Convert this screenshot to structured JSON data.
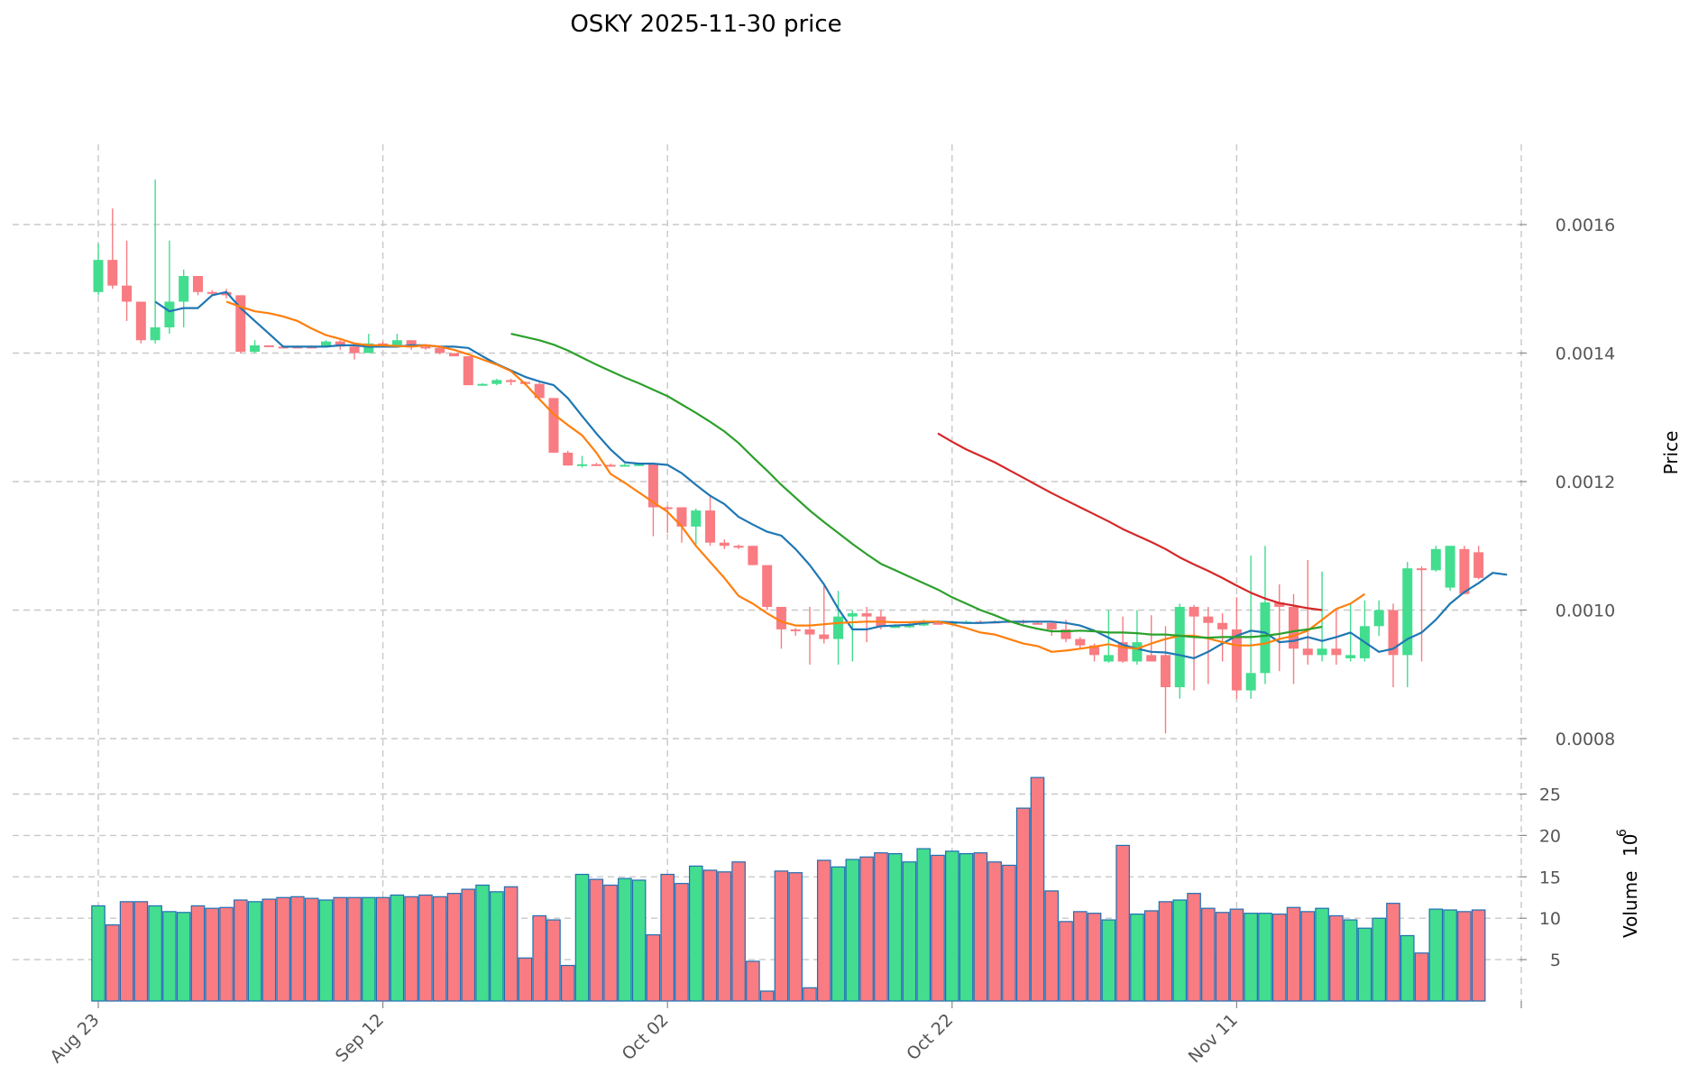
{
  "chart_data": {
    "type": "candlestick",
    "title": "OSKY  2025-11-30  price",
    "price_axis": {
      "label": "Price",
      "ylim": [
        0.00075,
        0.00172
      ],
      "ticks": [
        0.0008,
        0.001,
        0.0012,
        0.0014,
        0.0016
      ],
      "tick_labels": [
        "0.0008",
        "0.0010",
        "0.0012",
        "0.0014",
        "0.0016"
      ]
    },
    "volume_axis": {
      "label": "Volume",
      "multiplier_label": "10",
      "multiplier_exp": "6",
      "ylim": [
        0,
        27
      ],
      "ticks": [
        5,
        10,
        15,
        20,
        25
      ],
      "tick_labels": [
        "5",
        "10",
        "15",
        "20",
        "25"
      ]
    },
    "x_ticks": {
      "labels": [
        "Aug 23",
        "Sep 12",
        "Oct 02",
        "Oct 22",
        "Nov 11"
      ],
      "index": [
        0,
        20,
        40,
        60,
        80
      ]
    },
    "candles": [
      [
        0.001495,
        0.001545,
        0.00149,
        0.00157,
        11.5,
        "up"
      ],
      [
        0.001545,
        0.001505,
        0.0015,
        0.001625,
        9.2,
        "down"
      ],
      [
        0.001505,
        0.00148,
        0.00145,
        0.001575,
        12,
        "down"
      ],
      [
        0.00148,
        0.00142,
        0.001415,
        0.00148,
        12,
        "down"
      ],
      [
        0.00142,
        0.00144,
        0.001415,
        0.00167,
        11.5,
        "up"
      ],
      [
        0.00144,
        0.00148,
        0.00143,
        0.001575,
        10.8,
        "up"
      ],
      [
        0.00148,
        0.00152,
        0.00144,
        0.00153,
        10.7,
        "up"
      ],
      [
        0.00152,
        0.001495,
        0.00149,
        0.00152,
        11.5,
        "down"
      ],
      [
        0.001495,
        0.001495,
        0.00149,
        0.001498,
        11.2,
        "down"
      ],
      [
        0.001495,
        0.00149,
        0.001485,
        0.0015,
        11.3,
        "down"
      ],
      [
        0.00149,
        0.001402,
        0.0014,
        0.00149,
        12.2,
        "down"
      ],
      [
        0.001402,
        0.001412,
        0.0014,
        0.00142,
        12,
        "up"
      ],
      [
        0.001412,
        0.00141,
        0.00141,
        0.001412,
        12.3,
        "down"
      ],
      [
        0.00141,
        0.001409,
        0.001408,
        0.001412,
        12.5,
        "down"
      ],
      [
        0.001409,
        0.00141,
        0.001408,
        0.001412,
        12.6,
        "down"
      ],
      [
        0.00141,
        0.00141,
        0.001408,
        0.001412,
        12.4,
        "down"
      ],
      [
        0.00141,
        0.001418,
        0.00141,
        0.00142,
        12.2,
        "up"
      ],
      [
        0.001418,
        0.00141,
        0.001405,
        0.00142,
        12.5,
        "down"
      ],
      [
        0.00141,
        0.0014,
        0.00139,
        0.001412,
        12.5,
        "down"
      ],
      [
        0.0014,
        0.001415,
        0.0014,
        0.00143,
        12.5,
        "up"
      ],
      [
        0.001415,
        0.00141,
        0.00141,
        0.001418,
        12.5,
        "down"
      ],
      [
        0.00141,
        0.00142,
        0.00141,
        0.00143,
        12.8,
        "up"
      ],
      [
        0.00142,
        0.00141,
        0.001405,
        0.00142,
        12.6,
        "down"
      ],
      [
        0.00141,
        0.001408,
        0.001405,
        0.001412,
        12.8,
        "down"
      ],
      [
        0.001408,
        0.0014,
        0.001398,
        0.00141,
        12.6,
        "down"
      ],
      [
        0.0014,
        0.001395,
        0.001395,
        0.0014,
        13,
        "down"
      ],
      [
        0.001395,
        0.00135,
        0.00135,
        0.001395,
        13.5,
        "down"
      ],
      [
        0.00135,
        0.001352,
        0.00135,
        0.001353,
        14,
        "up"
      ],
      [
        0.001352,
        0.001358,
        0.00135,
        0.00136,
        13.2,
        "up"
      ],
      [
        0.001358,
        0.001355,
        0.00135,
        0.00136,
        13.8,
        "down"
      ],
      [
        0.001355,
        0.001352,
        0.00135,
        0.001356,
        5.2,
        "down"
      ],
      [
        0.001352,
        0.00133,
        0.001328,
        0.001354,
        10.3,
        "down"
      ],
      [
        0.00133,
        0.001245,
        0.001245,
        0.00133,
        9.8,
        "down"
      ],
      [
        0.001245,
        0.001225,
        0.001225,
        0.001248,
        4.3,
        "down"
      ],
      [
        0.001225,
        0.001227,
        0.001222,
        0.00124,
        15.3,
        "up"
      ],
      [
        0.001227,
        0.001226,
        0.001225,
        0.001229,
        14.7,
        "down"
      ],
      [
        0.001226,
        0.001225,
        0.001224,
        0.001228,
        14,
        "down"
      ],
      [
        0.001225,
        0.001226,
        0.001224,
        0.001228,
        14.8,
        "up"
      ],
      [
        0.001226,
        0.001227,
        0.001224,
        0.001229,
        14.6,
        "up"
      ],
      [
        0.001227,
        0.00116,
        0.001115,
        0.001227,
        8,
        "down"
      ],
      [
        0.00116,
        0.00116,
        0.00112,
        0.001162,
        15.3,
        "down"
      ],
      [
        0.00116,
        0.00113,
        0.001105,
        0.00116,
        14.2,
        "down"
      ],
      [
        0.00113,
        0.001155,
        0.0011,
        0.001158,
        16.3,
        "up"
      ],
      [
        0.001155,
        0.001105,
        0.0011,
        0.00118,
        15.8,
        "down"
      ],
      [
        0.001105,
        0.0011,
        0.001095,
        0.00111,
        15.6,
        "down"
      ],
      [
        0.0011,
        0.0011,
        0.001095,
        0.001102,
        16.8,
        "down"
      ],
      [
        0.0011,
        0.00107,
        0.00107,
        0.0011,
        4.8,
        "down"
      ],
      [
        0.00107,
        0.001005,
        0.001,
        0.00107,
        1.2,
        "down"
      ],
      [
        0.001005,
        0.00097,
        0.00094,
        0.001005,
        15.7,
        "down"
      ],
      [
        0.00097,
        0.00097,
        0.00096,
        0.000972,
        15.5,
        "down"
      ],
      [
        0.00097,
        0.000962,
        0.000915,
        0.001005,
        1.6,
        "down"
      ],
      [
        0.000962,
        0.000955,
        0.000948,
        0.00104,
        17,
        "down"
      ],
      [
        0.000955,
        0.00099,
        0.000915,
        0.00103,
        16.2,
        "up"
      ],
      [
        0.00099,
        0.000995,
        0.00092,
        0.001,
        17.1,
        "up"
      ],
      [
        0.000995,
        0.00099,
        0.00095,
        0.001005,
        17.4,
        "down"
      ],
      [
        0.00099,
        0.000975,
        0.00097,
        0.001,
        17.9,
        "down"
      ],
      [
        0.000975,
        0.000975,
        0.000972,
        0.000978,
        17.8,
        "up"
      ],
      [
        0.000975,
        0.000976,
        0.000972,
        0.000982,
        16.8,
        "up"
      ],
      [
        0.000976,
        0.00098,
        0.000975,
        0.000985,
        18.4,
        "up"
      ],
      [
        0.00098,
        0.00098,
        0.000978,
        0.000982,
        17.6,
        "down"
      ],
      [
        0.00098,
        0.000981,
        0.000978,
        0.000983,
        18.1,
        "up"
      ],
      [
        0.000981,
        0.000982,
        0.000979,
        0.000984,
        17.8,
        "up"
      ],
      [
        0.000982,
        0.000982,
        0.00098,
        0.000984,
        17.9,
        "down"
      ],
      [
        0.000982,
        0.000982,
        0.00098,
        0.000984,
        16.8,
        "down"
      ],
      [
        0.000982,
        0.000983,
        0.00098,
        0.000985,
        16.4,
        "down"
      ],
      [
        0.000983,
        0.00098,
        0.000978,
        0.000985,
        23.3,
        "down"
      ],
      [
        0.00098,
        0.00098,
        0.000978,
        0.000982,
        27,
        "down"
      ],
      [
        0.00098,
        0.00097,
        0.00096,
        0.000982,
        13.3,
        "down"
      ],
      [
        0.00097,
        0.000955,
        0.00095,
        0.000985,
        9.6,
        "down"
      ],
      [
        0.000955,
        0.000945,
        0.00094,
        0.000958,
        10.8,
        "down"
      ],
      [
        0.000945,
        0.00093,
        0.00092,
        0.000948,
        10.6,
        "down"
      ],
      [
        0.00093,
        0.00092,
        0.000918,
        0.001,
        9.8,
        "up"
      ],
      [
        0.00092,
        0.00095,
        0.000918,
        0.00099,
        18.8,
        "down"
      ],
      [
        0.00095,
        0.00092,
        0.000915,
        0.001,
        10.5,
        "up"
      ],
      [
        0.00092,
        0.00093,
        0.00092,
        0.000992,
        10.9,
        "down"
      ],
      [
        0.00093,
        0.00088,
        0.000808,
        0.000975,
        12,
        "down"
      ],
      [
        0.00088,
        0.001005,
        0.000862,
        0.00101,
        12.2,
        "up"
      ],
      [
        0.001005,
        0.00099,
        0.000875,
        0.001008,
        13,
        "down"
      ],
      [
        0.00099,
        0.00098,
        0.000885,
        0.001005,
        11.2,
        "down"
      ],
      [
        0.00098,
        0.00097,
        0.00092,
        0.000995,
        10.7,
        "down"
      ],
      [
        0.00097,
        0.000875,
        0.000862,
        0.00102,
        11.1,
        "down"
      ],
      [
        0.000875,
        0.000902,
        0.000862,
        0.001085,
        10.6,
        "up"
      ],
      [
        0.000902,
        0.001012,
        0.000885,
        0.0011,
        10.6,
        "up"
      ],
      [
        0.001012,
        0.001005,
        0.000905,
        0.00104,
        10.5,
        "down"
      ],
      [
        0.001005,
        0.00094,
        0.000885,
        0.001025,
        11.3,
        "down"
      ],
      [
        0.00094,
        0.00093,
        0.000915,
        0.001078,
        10.8,
        "down"
      ],
      [
        0.00093,
        0.00094,
        0.00092,
        0.00106,
        11.2,
        "up"
      ],
      [
        0.00094,
        0.00093,
        0.000915,
        0.001,
        10.3,
        "down"
      ],
      [
        0.00093,
        0.000925,
        0.00092,
        0.00101,
        9.8,
        "up"
      ],
      [
        0.000925,
        0.000975,
        0.00092,
        0.001015,
        8.8,
        "up"
      ],
      [
        0.000975,
        0.001,
        0.00096,
        0.001015,
        10,
        "up"
      ],
      [
        0.001,
        0.00093,
        0.00088,
        0.00101,
        11.8,
        "down"
      ],
      [
        0.00093,
        0.001065,
        0.00088,
        0.001075,
        7.9,
        "up"
      ],
      [
        0.001065,
        0.001065,
        0.00092,
        0.001068,
        5.8,
        "down"
      ],
      [
        0.001062,
        0.001095,
        0.00106,
        0.0011,
        11.1,
        "up"
      ],
      [
        0.001035,
        0.0011,
        0.00103,
        0.0011,
        11,
        "up"
      ],
      [
        0.001095,
        0.001025,
        0.001025,
        0.0011,
        10.8,
        "down"
      ],
      [
        0.00109,
        0.00105,
        0.001048,
        0.0011,
        11,
        "down"
      ]
    ],
    "moving_averages": [
      {
        "name": "MA5",
        "color": "#1f77b4",
        "start": 4,
        "values": [
          0.00148,
          0.001465,
          0.00147,
          0.00147,
          0.00149,
          0.001495,
          0.00147,
          0.00145,
          0.00143,
          0.00141,
          0.00141,
          0.00141,
          0.00141,
          0.001412,
          0.001412,
          0.00141,
          0.00141,
          0.00141,
          0.001412,
          0.001412,
          0.00141,
          0.00141,
          0.001408,
          0.001395,
          0.001383,
          0.001373,
          0.001363,
          0.001356,
          0.00135,
          0.00133,
          0.001302,
          0.001275,
          0.00125,
          0.00123,
          0.001228,
          0.001228,
          0.001226,
          0.001213,
          0.001195,
          0.001178,
          0.001165,
          0.001145,
          0.001133,
          0.001122,
          0.001116,
          0.001095,
          0.00107,
          0.00104,
          0.001002,
          0.00097,
          0.00097,
          0.000975,
          0.000976,
          0.000977,
          0.00098,
          0.000982,
          0.000981,
          0.00098,
          0.00098,
          0.000981,
          0.000982,
          0.000982,
          0.000982,
          0.000982,
          0.00098,
          0.000976,
          0.000968,
          0.000957,
          0.000946,
          0.00094,
          0.000935,
          0.000934,
          0.00093,
          0.000925,
          0.000935,
          0.000948,
          0.00096,
          0.000968,
          0.000965,
          0.00095,
          0.000952,
          0.000958,
          0.000952,
          0.000958,
          0.000965,
          0.00095,
          0.000935,
          0.00094,
          0.000955,
          0.000965,
          0.000985,
          0.00101,
          0.001028,
          0.001042,
          0.001058,
          0.001055
        ]
      },
      {
        "name": "MA10",
        "color": "#ff7f0e",
        "start": 9,
        "values": [
          0.00148,
          0.001472,
          0.001465,
          0.001462,
          0.001457,
          0.00145,
          0.001438,
          0.001428,
          0.001422,
          0.001415,
          0.001412,
          0.001412,
          0.001411,
          0.00141,
          0.001412,
          0.00141,
          0.001405,
          0.001398,
          0.00139,
          0.001382,
          0.001372,
          0.001352,
          0.001328,
          0.001305,
          0.001288,
          0.001272,
          0.001245,
          0.001212,
          0.001198,
          0.001183,
          0.001168,
          0.001153,
          0.00113,
          0.0011,
          0.001075,
          0.00105,
          0.001022,
          0.00101,
          0.000995,
          0.000982,
          0.000976,
          0.000976,
          0.000978,
          0.00098,
          0.000981,
          0.000982,
          0.000982,
          0.000981,
          0.000981,
          0.000982,
          0.000982,
          0.000978,
          0.000972,
          0.000965,
          0.000962,
          0.000955,
          0.000948,
          0.000944,
          0.000935,
          0.000937,
          0.00094,
          0.000943,
          0.000947,
          0.000942,
          0.00094,
          0.000948,
          0.000955,
          0.00096,
          0.00096,
          0.000956,
          0.00095,
          0.000945,
          0.000945,
          0.000948,
          0.000955,
          0.00096,
          0.000968,
          0.000985,
          0.001002,
          0.00101,
          0.001025
        ]
      },
      {
        "name": "MA20",
        "color": "#2ca02c",
        "start": 29,
        "values": [
          0.00143,
          0.001425,
          0.00142,
          0.001413,
          0.001404,
          0.001393,
          0.001382,
          0.001372,
          0.001362,
          0.001353,
          0.001343,
          0.001333,
          0.00132,
          0.001307,
          0.001293,
          0.001278,
          0.00126,
          0.001238,
          0.001217,
          0.001195,
          0.001175,
          0.001155,
          0.001137,
          0.00112,
          0.001103,
          0.001087,
          0.001072,
          0.001062,
          0.001052,
          0.001042,
          0.001032,
          0.00102,
          0.00101,
          0.001,
          0.000992,
          0.000983,
          0.000976,
          0.000971,
          0.000967,
          0.000967,
          0.000968,
          0.000967,
          0.000965,
          0.000965,
          0.000964,
          0.000962,
          0.000962,
          0.00096,
          0.000958,
          0.000957,
          0.000958,
          0.000958,
          0.000958,
          0.00096,
          0.000963,
          0.000967,
          0.00097,
          0.000974
        ]
      },
      {
        "name": "MA50",
        "color": "#d62728",
        "start": 59,
        "values": [
          0.001275,
          0.001262,
          0.00125,
          0.00124,
          0.00123,
          0.001218,
          0.001206,
          0.001194,
          0.001182,
          0.001171,
          0.00116,
          0.001149,
          0.001138,
          0.001126,
          0.001116,
          0.001106,
          0.001095,
          0.001082,
          0.001071,
          0.001061,
          0.00105,
          0.001038,
          0.001027,
          0.001018,
          0.001011,
          0.001007,
          0.001003,
          0.001
        ]
      }
    ]
  }
}
